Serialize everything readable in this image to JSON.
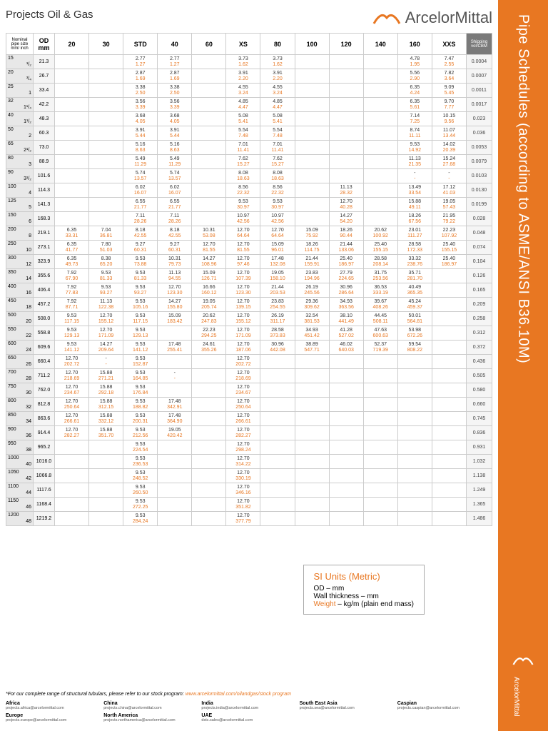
{
  "header": {
    "project": "Projects Oil & Gas",
    "brand": "ArcelorMittal"
  },
  "sidebar": {
    "title": "Pipe Schedules (according to ASME/ANSI B36.10M)",
    "brand": "ArcelorMittal"
  },
  "columns": [
    "Nominal pipe size mm/ inch",
    "OD mm",
    "20",
    "30",
    "STD",
    "40",
    "60",
    "XS",
    "80",
    "100",
    "120",
    "140",
    "160",
    "XXS",
    "Shipping vol/CBM"
  ],
  "si": {
    "title": "SI Units (Metric)",
    "l1": "OD – mm",
    "l2": "Wall thickness – mm",
    "l3k": "Weight",
    "l3v": " – kg/m (plain end mass)"
  },
  "footnote": {
    "text": "*For our complete range of structural tubulars, please refer to our stock program: ",
    "link": "www.arcelormittal.com/oilandgas/stock program"
  },
  "regions": [
    {
      "n": "Africa",
      "e": "projects.africa@arcelormittal.com"
    },
    {
      "n": "China",
      "e": "projects.china@arcelormittal.com"
    },
    {
      "n": "India",
      "e": "projects.india@arcelormittal.com"
    },
    {
      "n": "South East Asia",
      "e": "projects.sea@arcelormittal.com"
    },
    {
      "n": "Caspian",
      "e": "projects.caspian@arcelormittal.com"
    },
    {
      "n": "Europe",
      "e": "projects.europe@arcelormittal.com"
    },
    {
      "n": "North America",
      "e": "projects.northamerica@arcelormittal.com"
    },
    {
      "n": "UAE",
      "e": "dstc.sales@arcelormittal.com"
    }
  ],
  "rows": [
    {
      "mm": "15",
      "in": "¹/₂",
      "od": "21.3",
      "c": [
        "",
        "",
        "2.77|1.27",
        "2.77|1.27",
        "",
        "3.73|1.62",
        "3.73|1.62",
        "",
        "",
        "",
        "4.78|1.95",
        "7.47|2.55"
      ],
      "s": "0.0004"
    },
    {
      "mm": "20",
      "in": "³/₄",
      "od": "26.7",
      "c": [
        "",
        "",
        "2.87|1.69",
        "2.87|1.69",
        "",
        "3.91|2.20",
        "3.91|2.20",
        "",
        "",
        "",
        "5.56|2.90",
        "7.82|3.64"
      ],
      "s": "0.0007"
    },
    {
      "mm": "25",
      "in": "1",
      "od": "33.4",
      "c": [
        "",
        "",
        "3.38|2.50",
        "3.38|2.50",
        "",
        "4.55|3.24",
        "4.55|3.24",
        "",
        "",
        "",
        "6.35|4.24",
        "9.09|5.45"
      ],
      "s": "0.0011"
    },
    {
      "mm": "32",
      "in": "1¹/₄",
      "od": "42.2",
      "c": [
        "",
        "",
        "3.56|3.39",
        "3.56|3.39",
        "",
        "4.85|4.47",
        "4.85|4.47",
        "",
        "",
        "",
        "6.35|5.61",
        "9.70|7.77"
      ],
      "s": "0.0017"
    },
    {
      "mm": "40",
      "in": "1¹/₂",
      "od": "48.3",
      "c": [
        "",
        "",
        "3.68|4.05",
        "3.68|4.05",
        "",
        "5.08|5.41",
        "5.08|5.41",
        "",
        "",
        "",
        "7.14|7.25",
        "10.15|9.56"
      ],
      "s": "0.023"
    },
    {
      "mm": "50",
      "in": "2",
      "od": "60.3",
      "c": [
        "",
        "",
        "3.91|5.44",
        "3.91|5.44",
        "",
        "5.54|7.48",
        "5.54|7.48",
        "",
        "",
        "",
        "8.74|11.11",
        "11.07|13.44"
      ],
      "s": "0.036"
    },
    {
      "mm": "65",
      "in": "2¹/₂",
      "od": "73.0",
      "c": [
        "",
        "",
        "5.16|8.63",
        "5.16|8.63",
        "",
        "7.01|11.41",
        "7.01|11.41",
        "",
        "",
        "",
        "9.53|14.92",
        "14.02|20.39"
      ],
      "s": "0.0053"
    },
    {
      "mm": "80",
      "in": "3",
      "od": "88.9",
      "c": [
        "",
        "",
        "5.49|11.29",
        "5.49|11.29",
        "",
        "7.62|15.27",
        "7.62|15.27",
        "",
        "",
        "",
        "11.13|21.35",
        "15.24|27.68"
      ],
      "s": "0.0079"
    },
    {
      "mm": "90",
      "in": "3¹/₂",
      "od": "101.6",
      "c": [
        "",
        "",
        "5.74|13.57",
        "5.74|13.57",
        "",
        "8.08|18.63",
        "8.08|18.63",
        "",
        "",
        "",
        "-|-",
        "-|-"
      ],
      "s": "0.0103"
    },
    {
      "mm": "100",
      "in": "4",
      "od": "114.3",
      "c": [
        "",
        "",
        "6.02|16.07",
        "6.02|16.07",
        "",
        "8.56|22.32",
        "8.56|22.32",
        "",
        "11.13|28.32",
        "",
        "13.49|33.54",
        "17.12|41.03"
      ],
      "s": "0.0130"
    },
    {
      "mm": "125",
      "in": "5",
      "od": "141.3",
      "c": [
        "",
        "",
        "6.55|21.77",
        "6.55|21.77",
        "",
        "9.53|30.97",
        "9.53|30.97",
        "",
        "12.70|40.28",
        "",
        "15.88|49.11",
        "19.05|57.43"
      ],
      "s": "0.0199"
    },
    {
      "mm": "150",
      "in": "6",
      "od": "168.3",
      "c": [
        "",
        "",
        "7.11|28.26",
        "7.11|28.26",
        "",
        "10.97|42.56",
        "10.97|42.56",
        "",
        "14.27|54.20",
        "",
        "18.26|67.56",
        "21.95|79.22"
      ],
      "s": "0.028"
    },
    {
      "mm": "200",
      "in": "8",
      "od": "219.1",
      "c": [
        "6.35|33.31",
        "7.04|36.81",
        "8.18|42.55",
        "8.18|42.55",
        "10.31|53.08",
        "12.70|64.64",
        "12.70|64.64",
        "15.09|75.92",
        "18.26|90.44",
        "20.62|100.92",
        "23.01|111.27",
        "22.23|107.92"
      ],
      "s": "0.048"
    },
    {
      "mm": "250",
      "in": "10",
      "od": "273.1",
      "c": [
        "6.35|41.77",
        "7.80|51.03",
        "9.27|60.31",
        "9.27|60.31",
        "12.70|81.55",
        "12.70|81.55",
        "15.09|96.01",
        "18.26|114.75",
        "21.44|133.06",
        "25.40|155.15",
        "28.58|172.33",
        "25.40|155.15"
      ],
      "s": "0.074"
    },
    {
      "mm": "300",
      "in": "12",
      "od": "323.9",
      "c": [
        "6.35|49.73",
        "8.38|65.20",
        "9.53|73.88",
        "10.31|79.73",
        "14.27|108.96",
        "12.70|97.46",
        "17.48|132.08",
        "21.44|159.91",
        "25.40|186.97",
        "28.58|208.14",
        "33.32|238.76",
        "25.40|186.97"
      ],
      "s": "0.104"
    },
    {
      "mm": "350",
      "in": "14",
      "od": "355.6",
      "c": [
        "7.92|67.90",
        "9.53|81.33",
        "9.53|81.33",
        "11.13|94.55",
        "15.09|126.71",
        "12.70|107.39",
        "19.05|158.10",
        "23.83|194.96",
        "27.79|224.65",
        "31.75|253.56",
        "35.71|281.70",
        ""
      ],
      "s": "0.126"
    },
    {
      "mm": "400",
      "in": "16",
      "od": "406.4",
      "c": [
        "7.92|77.83",
        "9.53|93.27",
        "9.53|93.27",
        "12.70|123.30",
        "16.66|160.12",
        "12.70|123.30",
        "21.44|203.53",
        "26.19|245.56",
        "30.96|286.64",
        "36.53|333.19",
        "40.49|365.35",
        ""
      ],
      "s": "0.165"
    },
    {
      "mm": "450",
      "in": "18",
      "od": "457.2",
      "c": [
        "7.92|87.71",
        "11.13|122.38",
        "9.53|105.16",
        "14.27|155.80",
        "19.05|205.74",
        "12.70|139.15",
        "23.83|254.55",
        "29.36|309.62",
        "34.93|363.56",
        "39.67|408.26",
        "45.24|459.37",
        ""
      ],
      "s": "0.209"
    },
    {
      "mm": "500",
      "in": "20",
      "od": "508.0",
      "c": [
        "9.53|117.15",
        "12.70|155.12",
        "9.53|117.15",
        "15.09|183.42",
        "20.62|247.83",
        "12.70|155.12",
        "26.19|311.17",
        "32.54|381.53",
        "38.10|441.49",
        "44.45|508.11",
        "50.01|564.81",
        ""
      ],
      "s": "0.258"
    },
    {
      "mm": "550",
      "in": "22",
      "od": "558.8",
      "c": [
        "9.53|129.13",
        "12.70|171.09",
        "9.53|129.13",
        "",
        "22.23|294.25",
        "12.70|171.09",
        "28.58|373.83",
        "34.93|451.42",
        "41.28|527.02",
        "47.63|600.63",
        "53.98|672.26",
        ""
      ],
      "s": "0.312"
    },
    {
      "mm": "600",
      "in": "24",
      "od": "609.6",
      "c": [
        "9.53|141.12",
        "14.27|209.64",
        "9.53|141.12",
        "17.48|255.41",
        "24.61|355.26",
        "12.70|187.06",
        "30.96|442.08",
        "38.89|547.71",
        "46.02|640.03",
        "52.37|719.39",
        "59.54|808.22",
        ""
      ],
      "s": "0.372"
    },
    {
      "mm": "650",
      "in": "26",
      "od": "660.4",
      "c": [
        "12.70|202.72",
        "-|-",
        "9.53|152.87",
        "",
        "",
        "12.70|202.72",
        "",
        "",
        "",
        "",
        "",
        ""
      ],
      "s": "0.436"
    },
    {
      "mm": "700",
      "in": "28",
      "od": "711.2",
      "c": [
        "12.70|218.69",
        "15.88|271.21",
        "9.53|164.85",
        "-|-",
        "",
        "12.70|218.69",
        "",
        "",
        "",
        "",
        "",
        ""
      ],
      "s": "0.505"
    },
    {
      "mm": "750",
      "in": "30",
      "od": "762.0",
      "c": [
        "12.70|234.67",
        "15.88|292.18",
        "9.53|176.84",
        "",
        "",
        "12.70|234.67",
        "",
        "",
        "",
        "",
        "",
        ""
      ],
      "s": "0.580"
    },
    {
      "mm": "800",
      "in": "32",
      "od": "812.8",
      "c": [
        "12.70|250.64",
        "15.88|312.15",
        "9.53|188.82",
        "17.48|342.91",
        "",
        "12.70|250.64",
        "",
        "",
        "",
        "",
        "",
        ""
      ],
      "s": "0.660"
    },
    {
      "mm": "850",
      "in": "34",
      "od": "863.6",
      "c": [
        "12.70|266.61",
        "15.88|332.12",
        "9.53|200.31",
        "17.48|364.90",
        "",
        "12.70|266.61",
        "",
        "",
        "",
        "",
        "",
        ""
      ],
      "s": "0.745"
    },
    {
      "mm": "900",
      "in": "36",
      "od": "914.4",
      "c": [
        "12.70|282.27",
        "15.88|351.70",
        "9.53|212.56",
        "19.05|420.42",
        "",
        "12.70|282.27",
        "",
        "",
        "",
        "",
        "",
        ""
      ],
      "s": "0.836"
    },
    {
      "mm": "950",
      "in": "38",
      "od": "965.2",
      "c": [
        "",
        "",
        "9.53|224.54",
        "",
        "",
        "12.70|298.24",
        "",
        "",
        "",
        "",
        "",
        ""
      ],
      "s": "0.931"
    },
    {
      "mm": "1000",
      "in": "40",
      "od": "1016.0",
      "c": [
        "",
        "",
        "9.53|236.53",
        "",
        "",
        "12.70|314.22",
        "",
        "",
        "",
        "",
        "",
        ""
      ],
      "s": "1.032"
    },
    {
      "mm": "1050",
      "in": "42",
      "od": "1066.8",
      "c": [
        "",
        "",
        "9.53|248.52",
        "",
        "",
        "12.70|330.19",
        "",
        "",
        "",
        "",
        "",
        ""
      ],
      "s": "1.138"
    },
    {
      "mm": "1100",
      "in": "44",
      "od": "1117.6",
      "c": [
        "",
        "",
        "9.53|260.50",
        "",
        "",
        "12.70|346.16",
        "",
        "",
        "",
        "",
        "",
        ""
      ],
      "s": "1.249"
    },
    {
      "mm": "1150",
      "in": "46",
      "od": "1168.4",
      "c": [
        "",
        "",
        "9.53|272.25",
        "",
        "",
        "12.70|351.82",
        "",
        "",
        "",
        "",
        "",
        ""
      ],
      "s": "1.365"
    },
    {
      "mm": "1200",
      "in": "48",
      "od": "1219.2",
      "c": [
        "",
        "",
        "9.53|284.24",
        "",
        "",
        "12.70|377.79",
        "",
        "",
        "",
        "",
        "",
        ""
      ],
      "s": "1.486"
    }
  ]
}
